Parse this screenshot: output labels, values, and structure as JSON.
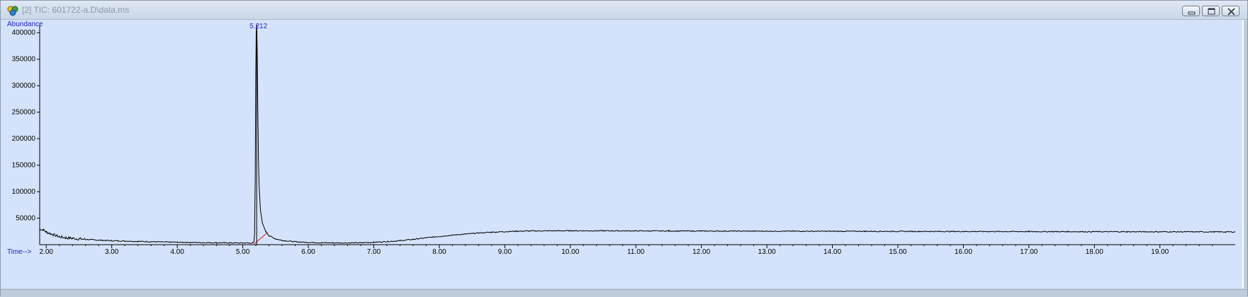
{
  "window": {
    "title": "[2] TIC: 601722-a.D\\data.ms",
    "icon": "chemstation-data-icon",
    "buttons": [
      "minimize",
      "restore",
      "close"
    ]
  },
  "chart_data": {
    "type": "line",
    "title": "",
    "ylabel": "Abundance",
    "xlabel": "Time-->",
    "xlim": [
      1.9,
      20.15
    ],
    "ylim": [
      0,
      415000
    ],
    "x_ticks": [
      "2.00",
      "3.00",
      "4.00",
      "5.00",
      "6.00",
      "7.00",
      "8.00",
      "9.00",
      "10.00",
      "11.00",
      "12.00",
      "13.00",
      "14.00",
      "15.00",
      "16.00",
      "17.00",
      "18.00",
      "19.00"
    ],
    "y_ticks": [
      "50000",
      "100000",
      "150000",
      "200000",
      "250000",
      "300000",
      "350000",
      "400000"
    ],
    "grid": false,
    "peak_label": "5.212",
    "peak": {
      "rt": 5.212,
      "apex": 415000
    },
    "baseline_segment": {
      "x": [
        5.16,
        5.38
      ],
      "y": [
        0,
        23000
      ]
    },
    "series": [
      {
        "x": [
          1.9,
          1.95,
          2.0,
          2.1,
          2.2,
          2.3,
          2.4,
          2.5,
          2.6,
          2.8,
          3.0,
          3.2,
          3.4,
          3.6,
          3.8,
          4.0,
          4.2,
          4.4,
          4.6,
          4.8,
          5.0,
          5.1,
          5.15,
          5.17,
          5.18,
          5.19,
          5.2,
          5.205,
          5.212,
          5.22,
          5.23,
          5.24,
          5.25,
          5.27,
          5.3,
          5.35,
          5.4,
          5.5,
          5.6,
          5.8,
          6.0,
          6.2,
          6.5,
          6.8,
          7.0,
          7.2,
          7.4,
          7.6,
          7.8,
          8.0,
          8.2,
          8.4,
          8.6,
          8.8,
          9.0,
          9.2,
          9.5,
          10.0,
          10.5,
          11.0,
          11.5,
          12.0,
          12.5,
          13.0,
          13.5,
          14.0,
          14.5,
          15.0,
          15.5,
          16.0,
          16.5,
          17.0,
          17.5,
          18.0,
          18.5,
          19.0,
          19.5,
          20.0,
          20.15
        ],
        "y": [
          30000,
          28000,
          24000,
          19000,
          15000,
          13000,
          12000,
          11000,
          10000,
          8500,
          7500,
          6800,
          6200,
          5600,
          5000,
          4600,
          4200,
          3900,
          3600,
          3400,
          3200,
          3100,
          3300,
          5000,
          20000,
          120000,
          330000,
          400000,
          415000,
          370000,
          250000,
          160000,
          110000,
          65000,
          40000,
          25000,
          17000,
          11000,
          8000,
          5500,
          4200,
          3600,
          3300,
          3500,
          4500,
          5800,
          7500,
          10000,
          13000,
          15500,
          18000,
          20000,
          22000,
          23500,
          24500,
          25500,
          26000,
          26300,
          26200,
          26000,
          25800,
          25700,
          25600,
          25500,
          25400,
          25300,
          25200,
          25100,
          25000,
          24900,
          24800,
          24700,
          24600,
          24500,
          24400,
          24300,
          24200,
          24100,
          24000
        ]
      }
    ]
  }
}
